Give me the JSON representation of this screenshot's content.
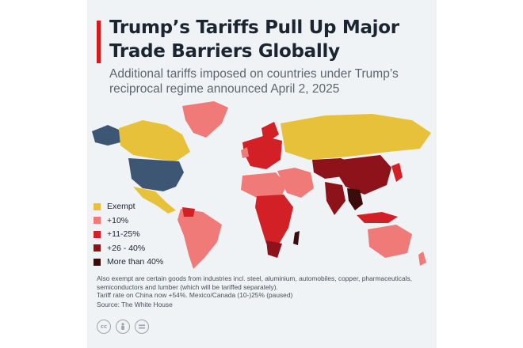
{
  "title": "Trump’s Tariffs Pull Up Major Trade Barriers Globally",
  "subtitle": "Additional tariffs imposed on countries under Trump’s reciprocal regime announced April 2, 2025",
  "legend": [
    {
      "label": "Exempt",
      "color": "#e8c13a"
    },
    {
      "label": "+10%",
      "color": "#f07a78"
    },
    {
      "label": "+11-25%",
      "color": "#d32027"
    },
    {
      "label": "+26 - 40%",
      "color": "#8e1219"
    },
    {
      "label": "More than 40%",
      "color": "#3a0c0c"
    }
  ],
  "notes": {
    "line1": "Also exempt are certain goods from industries incl. steel, aluminium, automobiles, copper, pharmaceuticals, semiconductors and lumber (which will be tariffed separately).",
    "line2": "Tariff rate on China now +54%. Mexico/Canada (10-)25% (paused)"
  },
  "source": "Source: The White House",
  "license_icons": [
    "cc-icon",
    "by-icon",
    "nd-icon"
  ],
  "colors": {
    "us": "#3d5673",
    "exempt": "#e8c13a",
    "ten": "#f07a78",
    "mid": "#d32027",
    "high": "#8e1219",
    "max": "#3a0c0c"
  }
}
